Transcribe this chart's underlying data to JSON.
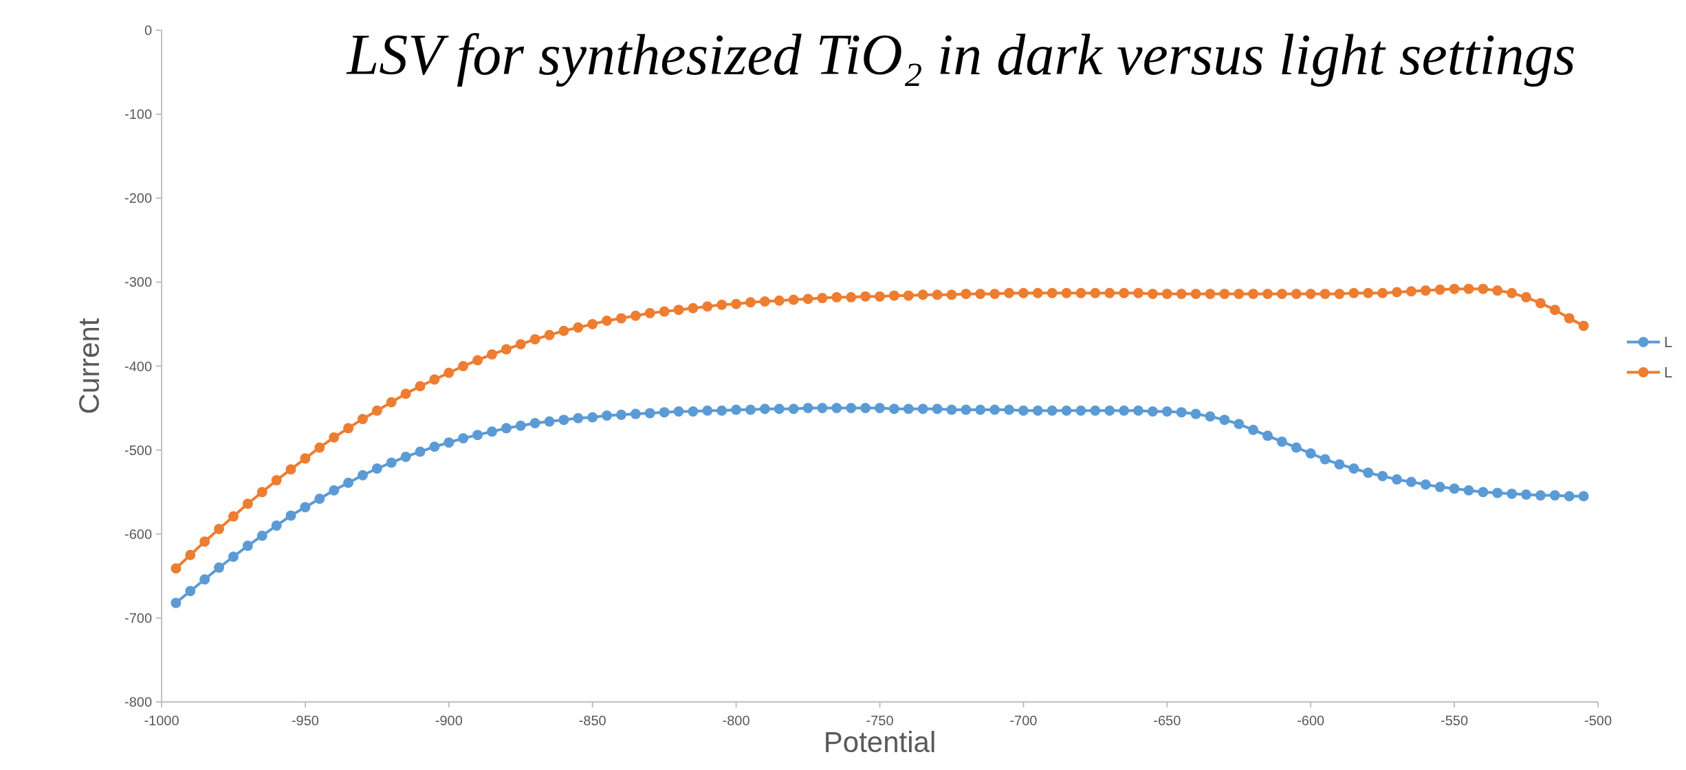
{
  "chart_data": {
    "type": "line",
    "title": "LSV for synthesized TiO₂ in dark versus light settings",
    "xlabel": "Potential",
    "ylabel": "Current",
    "x": [
      -995,
      -990,
      -985,
      -980,
      -975,
      -970,
      -965,
      -960,
      -955,
      -950,
      -945,
      -940,
      -935,
      -930,
      -925,
      -920,
      -915,
      -910,
      -905,
      -900,
      -895,
      -890,
      -885,
      -880,
      -875,
      -870,
      -865,
      -860,
      -855,
      -850,
      -845,
      -840,
      -835,
      -830,
      -825,
      -820,
      -815,
      -810,
      -805,
      -800,
      -795,
      -790,
      -785,
      -780,
      -775,
      -770,
      -765,
      -760,
      -755,
      -750,
      -745,
      -740,
      -735,
      -730,
      -725,
      -720,
      -715,
      -710,
      -705,
      -700,
      -695,
      -690,
      -685,
      -680,
      -675,
      -670,
      -665,
      -660,
      -655,
      -650,
      -645,
      -640,
      -635,
      -630,
      -625,
      -620,
      -615,
      -610,
      -605,
      -600,
      -595,
      -590,
      -585,
      -580,
      -575,
      -570,
      -565,
      -560,
      -555,
      -550,
      -545,
      -540,
      -535,
      -530,
      -525,
      -520,
      -515,
      -510,
      -505
    ],
    "series": [
      {
        "name": "L",
        "color": "#5b9bd5",
        "values": [
          -682,
          -668,
          -654,
          -640,
          -627,
          -614,
          -602,
          -590,
          -578,
          -568,
          -558,
          -548,
          -539,
          -530,
          -522,
          -515,
          -508,
          -502,
          -496,
          -491,
          -486,
          -482,
          -478,
          -474,
          -471,
          -468,
          -466,
          -464,
          -462,
          -461,
          -459,
          -458,
          -457,
          -456,
          -455,
          -454,
          -454,
          -453,
          -453,
          -452,
          -452,
          -451,
          -451,
          -451,
          -450,
          -450,
          -450,
          -450,
          -450,
          -450,
          -451,
          -451,
          -451,
          -451,
          -452,
          -452,
          -452,
          -452,
          -452,
          -453,
          -453,
          -453,
          -453,
          -453,
          -453,
          -453,
          -453,
          -453,
          -454,
          -454,
          -455,
          -457,
          -460,
          -464,
          -469,
          -476,
          -483,
          -490,
          -497,
          -504,
          -511,
          -517,
          -522,
          -527,
          -531,
          -535,
          -538,
          -541,
          -544,
          -546,
          -548,
          -550,
          -551,
          -552,
          -553,
          -554,
          -554,
          -555,
          -555
        ]
      },
      {
        "name": "L",
        "color": "#ed7d31",
        "values": [
          -641,
          -625,
          -609,
          -594,
          -579,
          -564,
          -550,
          -536,
          -523,
          -510,
          -497,
          -485,
          -474,
          -463,
          -453,
          -443,
          -433,
          -424,
          -416,
          -408,
          -400,
          -393,
          -386,
          -380,
          -374,
          -368,
          -363,
          -358,
          -354,
          -350,
          -346,
          -343,
          -340,
          -337,
          -335,
          -333,
          -331,
          -329,
          -327,
          -326,
          -324,
          -323,
          -322,
          -321,
          -320,
          -319,
          -318,
          -318,
          -317,
          -317,
          -316,
          -316,
          -315,
          -315,
          -315,
          -314,
          -314,
          -314,
          -313,
          -313,
          -313,
          -313,
          -313,
          -313,
          -313,
          -313,
          -313,
          -313,
          -314,
          -314,
          -314,
          -314,
          -314,
          -314,
          -314,
          -314,
          -314,
          -314,
          -314,
          -314,
          -314,
          -314,
          -313,
          -313,
          -313,
          -312,
          -311,
          -310,
          -309,
          -308,
          -308,
          -308,
          -310,
          -313,
          -318,
          -325,
          -333,
          -343,
          -352
        ]
      }
    ],
    "xlim": [
      -1000,
      -500
    ],
    "xticks": [
      -1000,
      -950,
      -900,
      -850,
      -800,
      -750,
      -700,
      -650,
      -600,
      -550,
      -500
    ],
    "ylim": [
      -800,
      0
    ],
    "yticks": [
      -800,
      -700,
      -600,
      -500,
      -400,
      -300,
      -200,
      -100,
      0
    ],
    "grid": false,
    "legend": "right",
    "marker": "circle",
    "line_style": "solid"
  }
}
